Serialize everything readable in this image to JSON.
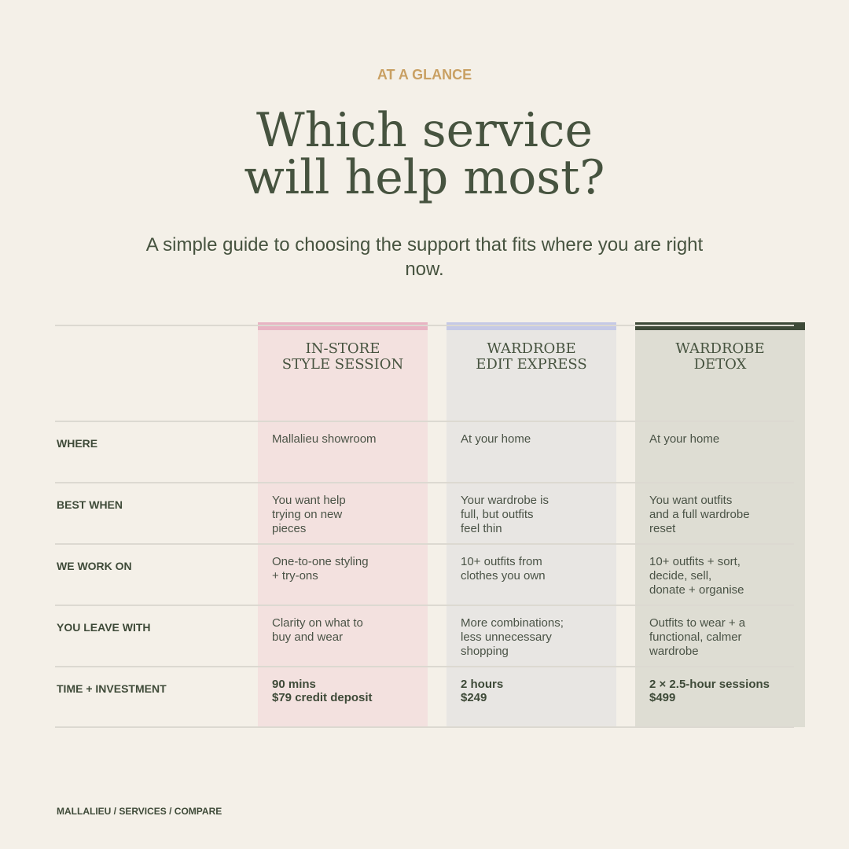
{
  "eyebrow": "AT A GLANCE",
  "title": [
    "Which service",
    "will help most?"
  ],
  "subtitle": "A simple guide to choosing the support that fits where you are right now.",
  "table": {
    "columns": [
      [
        "IN-STORE",
        "STYLE SESSION"
      ],
      [
        "WARDROBE",
        "EDIT EXPRESS"
      ],
      [
        "WARDROBE",
        "DETOX"
      ]
    ],
    "rows": [
      {
        "label": "WHERE",
        "cells": [
          [
            "Mallalieu showroom"
          ],
          [
            "At your home"
          ],
          [
            "At your home"
          ]
        ]
      },
      {
        "label": "BEST WHEN",
        "cells": [
          [
            "You want help",
            "trying on new",
            "pieces"
          ],
          [
            "Your wardrobe is",
            "full, but outfits",
            "feel thin"
          ],
          [
            "You want outfits",
            "and a full wardrobe",
            "reset"
          ]
        ]
      },
      {
        "label": "WE WORK ON",
        "cells": [
          [
            "One-to-one styling",
            "+ try-ons"
          ],
          [
            "10+ outfits from",
            "clothes you own"
          ],
          [
            "10+ outfits + sort,",
            "decide, sell,",
            "donate + organise"
          ]
        ]
      },
      {
        "label": "YOU LEAVE WITH",
        "cells": [
          [
            "Clarity on what to",
            "buy and wear"
          ],
          [
            "More combinations;",
            "less unnecessary",
            "shopping"
          ],
          [
            "Outfits to wear + a",
            "functional, calmer",
            "wardrobe"
          ]
        ]
      },
      {
        "label": "TIME + INVESTMENT",
        "cells": [
          [
            "90 mins",
            "$79 credit deposit"
          ],
          [
            "2 hours",
            "$249"
          ],
          [
            "2 × 2.5-hour sessions",
            "$499"
          ]
        ]
      }
    ]
  },
  "footer": "MALLALIEU / SERVICES / COMPARE"
}
